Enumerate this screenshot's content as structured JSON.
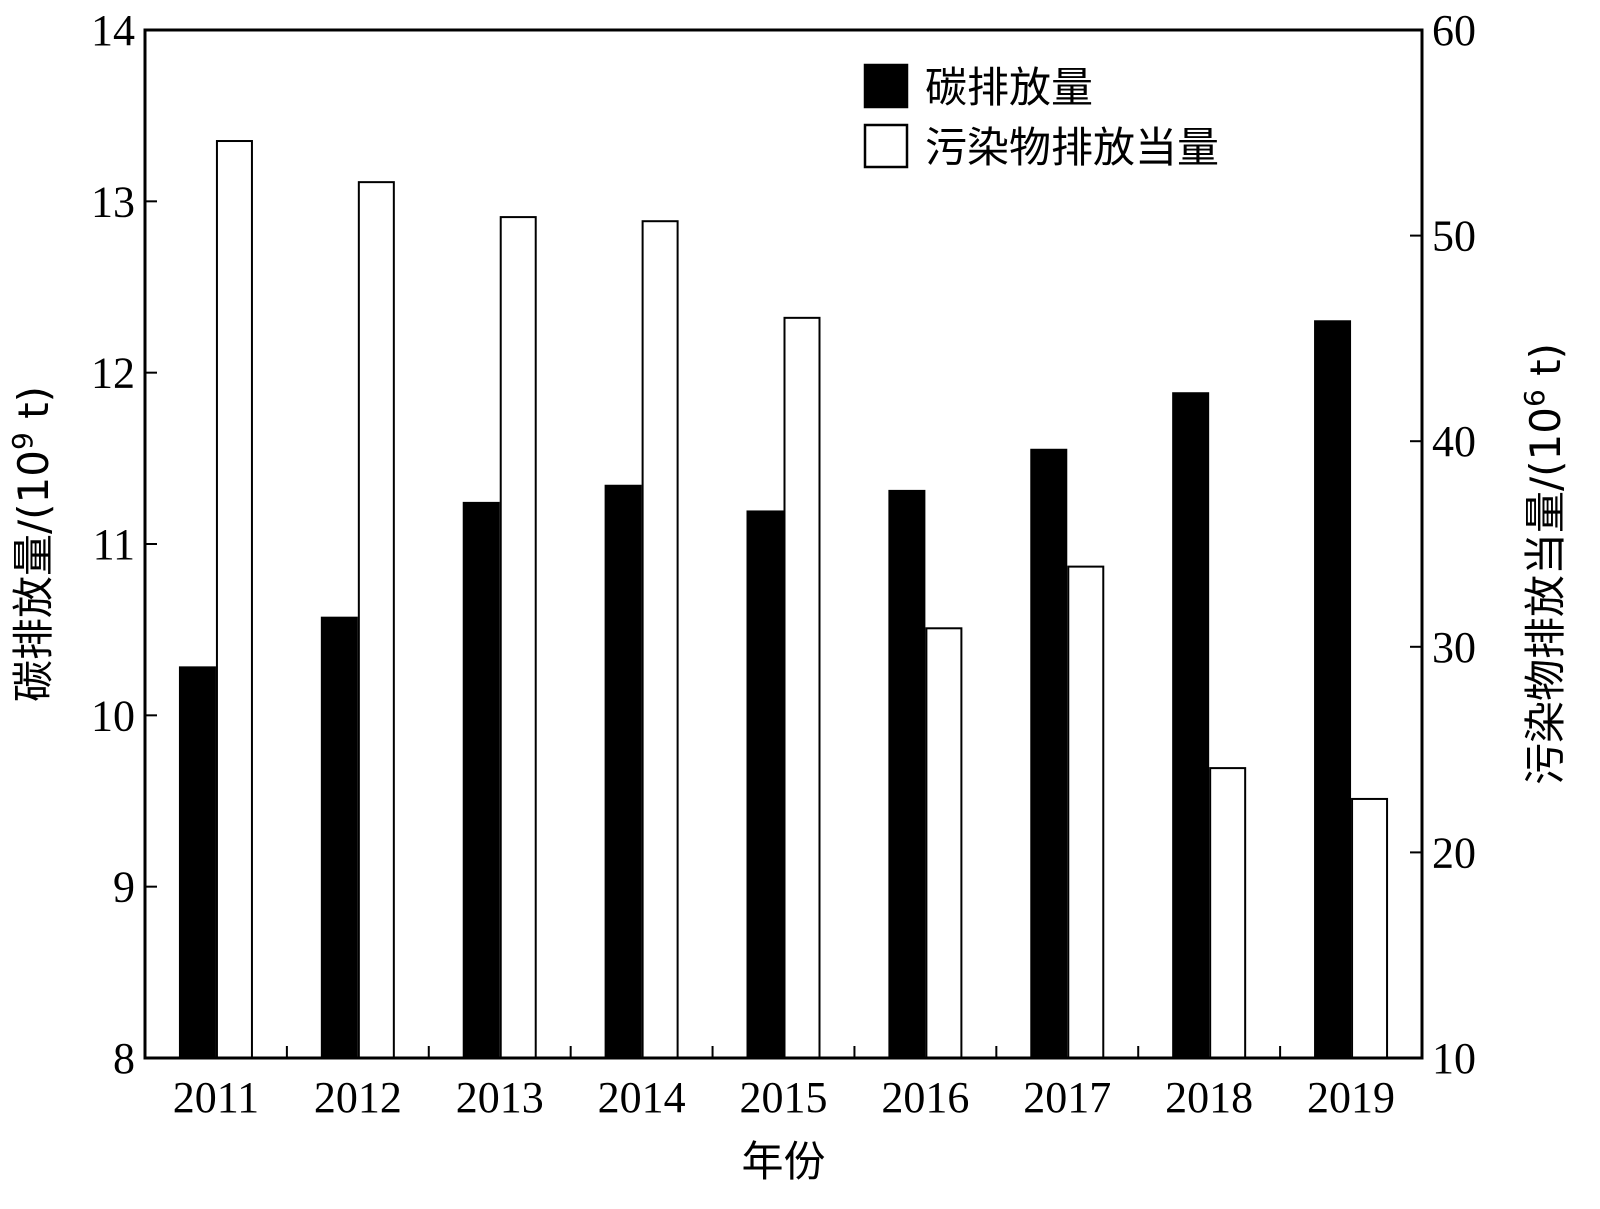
{
  "chart_data": {
    "type": "bar",
    "categories": [
      "2011",
      "2012",
      "2013",
      "2014",
      "2015",
      "2016",
      "2017",
      "2018",
      "2019"
    ],
    "series": [
      {
        "name": "碳排放量",
        "axis": "left",
        "color": "#000000",
        "values": [
          10.28,
          10.57,
          11.24,
          11.34,
          11.19,
          11.31,
          11.55,
          11.88,
          12.3
        ]
      },
      {
        "name": "污染物排放当量",
        "axis": "right",
        "color": "#ffffff",
        "values": [
          54.6,
          52.6,
          50.9,
          50.7,
          46.0,
          30.9,
          33.9,
          24.1,
          22.6
        ]
      }
    ],
    "xlabel": "年份",
    "ylabel_left": {
      "main": "碳排放量/(10",
      "sup": "9",
      "tail": " t)"
    },
    "ylabel_right": {
      "main": "污染物排放当量/(10",
      "sup": "6",
      "tail": " t)"
    },
    "ylim_left": [
      8,
      14
    ],
    "yticks_left": [
      8,
      9,
      10,
      11,
      12,
      13,
      14
    ],
    "ylim_right": [
      10,
      60
    ],
    "yticks_right": [
      10,
      20,
      30,
      40,
      50,
      60
    ],
    "legend_position": "top-right",
    "grid": false
  }
}
